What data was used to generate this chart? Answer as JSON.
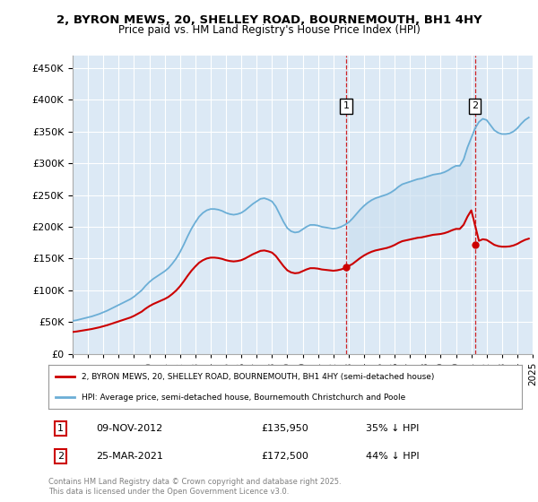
{
  "title1": "2, BYRON MEWS, 20, SHELLEY ROAD, BOURNEMOUTH, BH1 4HY",
  "title2": "Price paid vs. HM Land Registry's House Price Index (HPI)",
  "ylim": [
    0,
    470000
  ],
  "yticks": [
    0,
    50000,
    100000,
    150000,
    200000,
    250000,
    300000,
    350000,
    400000,
    450000
  ],
  "background_color": "#ffffff",
  "plot_bg_color": "#dce9f5",
  "grid_color": "#ffffff",
  "hpi_color": "#6baed6",
  "price_color": "#cc0000",
  "shade_color": "#cce0f0",
  "annotation1_date": "09-NOV-2012",
  "annotation1_price": "£135,950",
  "annotation1_pct": "35% ↓ HPI",
  "annotation1_label": "1",
  "annotation2_date": "25-MAR-2021",
  "annotation2_price": "£172,500",
  "annotation2_pct": "44% ↓ HPI",
  "annotation2_label": "2",
  "legend_line1": "2, BYRON MEWS, 20, SHELLEY ROAD, BOURNEMOUTH, BH1 4HY (semi-detached house)",
  "legend_line2": "HPI: Average price, semi-detached house, Bournemouth Christchurch and Poole",
  "footnote": "Contains HM Land Registry data © Crown copyright and database right 2025.\nThis data is licensed under the Open Government Licence v3.0.",
  "hpi_x": [
    1995.0,
    1995.25,
    1995.5,
    1995.75,
    1996.0,
    1996.25,
    1996.5,
    1996.75,
    1997.0,
    1997.25,
    1997.5,
    1997.75,
    1998.0,
    1998.25,
    1998.5,
    1998.75,
    1999.0,
    1999.25,
    1999.5,
    1999.75,
    2000.0,
    2000.25,
    2000.5,
    2000.75,
    2001.0,
    2001.25,
    2001.5,
    2001.75,
    2002.0,
    2002.25,
    2002.5,
    2002.75,
    2003.0,
    2003.25,
    2003.5,
    2003.75,
    2004.0,
    2004.25,
    2004.5,
    2004.75,
    2005.0,
    2005.25,
    2005.5,
    2005.75,
    2006.0,
    2006.25,
    2006.5,
    2006.75,
    2007.0,
    2007.25,
    2007.5,
    2007.75,
    2008.0,
    2008.25,
    2008.5,
    2008.75,
    2009.0,
    2009.25,
    2009.5,
    2009.75,
    2010.0,
    2010.25,
    2010.5,
    2010.75,
    2011.0,
    2011.25,
    2011.5,
    2011.75,
    2012.0,
    2012.25,
    2012.5,
    2012.75,
    2013.0,
    2013.25,
    2013.5,
    2013.75,
    2014.0,
    2014.25,
    2014.5,
    2014.75,
    2015.0,
    2015.25,
    2015.5,
    2015.75,
    2016.0,
    2016.25,
    2016.5,
    2016.75,
    2017.0,
    2017.25,
    2017.5,
    2017.75,
    2018.0,
    2018.25,
    2018.5,
    2018.75,
    2019.0,
    2019.25,
    2019.5,
    2019.75,
    2020.0,
    2020.25,
    2020.5,
    2020.75,
    2021.0,
    2021.25,
    2021.5,
    2021.75,
    2022.0,
    2022.25,
    2022.5,
    2022.75,
    2023.0,
    2023.25,
    2023.5,
    2023.75,
    2024.0,
    2024.25,
    2024.5,
    2024.75
  ],
  "hpi_y": [
    52000,
    53000,
    54500,
    56000,
    57500,
    59000,
    61000,
    63000,
    65500,
    68000,
    71000,
    74000,
    77000,
    80000,
    83000,
    86000,
    90000,
    95000,
    100000,
    107000,
    113000,
    118000,
    122000,
    126000,
    130000,
    135000,
    142000,
    150000,
    160000,
    172000,
    185000,
    197000,
    207000,
    216000,
    222000,
    226000,
    228000,
    228000,
    227000,
    225000,
    222000,
    220000,
    219000,
    220000,
    222000,
    226000,
    231000,
    236000,
    240000,
    244000,
    245000,
    243000,
    240000,
    232000,
    220000,
    208000,
    198000,
    193000,
    191000,
    192000,
    196000,
    200000,
    203000,
    203000,
    202000,
    200000,
    199000,
    198000,
    197000,
    198000,
    200000,
    203000,
    207000,
    213000,
    220000,
    227000,
    233000,
    238000,
    242000,
    245000,
    247000,
    249000,
    251000,
    254000,
    258000,
    263000,
    267000,
    269000,
    271000,
    273000,
    275000,
    276000,
    278000,
    280000,
    282000,
    283000,
    284000,
    286000,
    289000,
    293000,
    296000,
    296000,
    306000,
    325000,
    340000,
    355000,
    365000,
    370000,
    368000,
    360000,
    352000,
    348000,
    346000,
    346000,
    347000,
    350000,
    355000,
    362000,
    368000,
    372000
  ],
  "sale1_x": 2012.85,
  "sale1_y": 135950,
  "sale2_x": 2021.23,
  "sale2_y": 172500,
  "xmin": 1995.0,
  "xmax": 2025.0
}
